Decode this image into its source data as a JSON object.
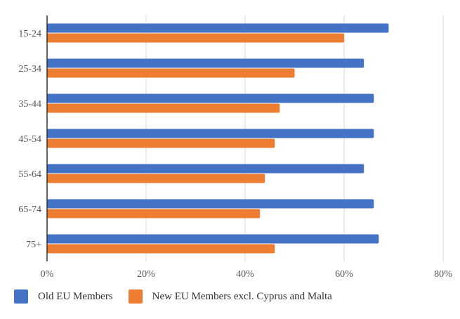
{
  "chart_data": {
    "type": "bar",
    "orientation": "horizontal",
    "categories": [
      "15-24",
      "25-34",
      "35-44",
      "45-54",
      "55-64",
      "65-74",
      "75+"
    ],
    "series": [
      {
        "name": "Old EU Members",
        "color": "#4472C4",
        "values": [
          69,
          64,
          66,
          66,
          64,
          66,
          67
        ]
      },
      {
        "name": "New EU Members excl. Cyprus and Malta",
        "color": "#ED7D31",
        "values": [
          60,
          50,
          47,
          46,
          44,
          43,
          46
        ]
      }
    ],
    "xlim": [
      0,
      80
    ],
    "x_ticks": [
      "0%",
      "20%",
      "40%",
      "60%",
      "80%"
    ],
    "x_tick_values": [
      0,
      20,
      40,
      60,
      80
    ],
    "grid": true,
    "legend": "bottom-left",
    "title": "",
    "xlabel": "",
    "ylabel": ""
  }
}
